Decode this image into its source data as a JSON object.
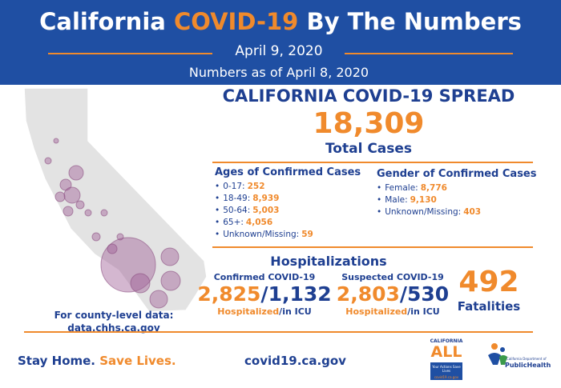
{
  "header": {
    "title": [
      "California",
      "COVID-19",
      "By The Numbers"
    ],
    "date": "April 9, 2020",
    "as_of": "Numbers as of April 8, 2020"
  },
  "map": {
    "note": "For county-level data:",
    "link": "data.chhs.ca.gov"
  },
  "spread": {
    "title": "CALIFORNIA COVID-19 SPREAD",
    "total": "18,309",
    "total_label": "Total Cases"
  },
  "ages": {
    "heading": "Ages of Confirmed Cases",
    "items": [
      {
        "label": "0-17:",
        "value": "252"
      },
      {
        "label": "18-49:",
        "value": "8,939"
      },
      {
        "label": "50-64:",
        "value": "5,003"
      },
      {
        "label": "65+:",
        "value": "4,056"
      },
      {
        "label": "Unknown/Missing:",
        "value": "59"
      }
    ]
  },
  "gender": {
    "heading": "Gender of Confirmed Cases",
    "items": [
      {
        "label": "Female:",
        "value": "8,776"
      },
      {
        "label": "Male:",
        "value": "9,130"
      },
      {
        "label": "Unknown/Missing:",
        "value": "403"
      }
    ]
  },
  "hospitalizations": {
    "heading": "Hospitalizations",
    "confirmed": {
      "title": "Confirmed COVID-19",
      "hospitalized": "2,825",
      "separator": "/",
      "icu": "1,132",
      "hospitalized_label": "Hospitalized",
      "icu_label": "/in ICU"
    },
    "suspected": {
      "title": "Suspected COVID-19",
      "hospitalized": "2,803",
      "separator": "/",
      "icu": "530",
      "hospitalized_label": "Hospitalized",
      "icu_label": "/in ICU"
    }
  },
  "fatalities": {
    "value": "492",
    "label": "Fatalities"
  },
  "footer": {
    "slogan_1": "Stay Home.",
    "slogan_2": "Save Lives.",
    "website": "covid19.ca.gov",
    "logo_ca": {
      "top": "CALIFORNIA",
      "main": "ALL",
      "tag": "Your Actions Save Lives",
      "url": "covid19.ca.gov"
    },
    "logo_cdph": {
      "top": "California Department of",
      "main": "PublicHealth"
    }
  }
}
